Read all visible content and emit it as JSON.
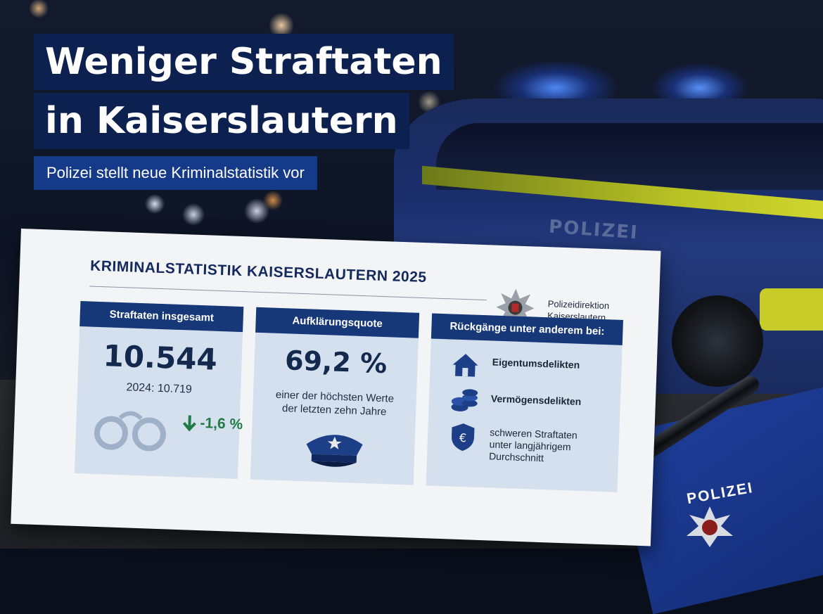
{
  "headline": {
    "line1": "Weniger Straftaten",
    "line2": "in Kaiserslautern",
    "subtitle": "Polizei stellt neue Kriminalstatistik vor"
  },
  "background": {
    "car_text": "POLIZEI"
  },
  "poster": {
    "title": "KRIMINALSTATISTIK KAISERSLAUTERN 2025",
    "org_line1": "Polizeidirektion",
    "org_line2": "Kaiserslautern",
    "panel1": {
      "heading": "Straftaten insgesamt",
      "value": "10.544",
      "previous": "2024: 10.719",
      "change": "-1,6 %",
      "icon": "handcuffs-icon"
    },
    "panel2": {
      "heading": "Aufklärungsquote",
      "value": "69,2 %",
      "note_line1": "einer der höchsten Werte",
      "note_line2": "der letzten zehn Jahre",
      "icon": "police-cap-icon"
    },
    "panel3": {
      "heading": "Rückgänge unter anderem bei:",
      "items": [
        {
          "label": "Eigentumsdelikten",
          "icon": "house-icon"
        },
        {
          "label": "Vermögensdelikten",
          "icon": "coins-icon"
        },
        {
          "label_line1": "schweren Straftaten",
          "label_line2": "unter langjährigem",
          "label_line3": "Durchschnitt",
          "icon": "shield-euro-icon"
        }
      ]
    }
  },
  "folder": {
    "label": "POLIZEI"
  },
  "colors": {
    "headline_bg": "#0d2150",
    "subtitle_bg": "#163a8a",
    "panel_head": "#173878",
    "panel_bg": "#d5e0ee",
    "change_green": "#1f7a45"
  }
}
